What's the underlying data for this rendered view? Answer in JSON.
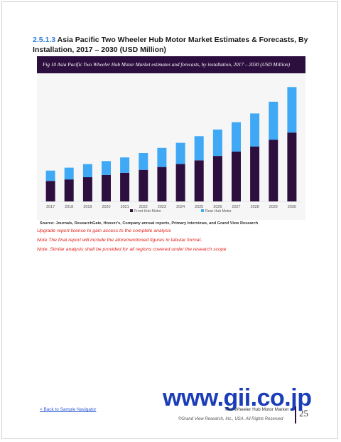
{
  "heading": {
    "number": "2.5.1.3",
    "text": "Asia Pacific Two Wheeler Hub Motor Market Estimates & Forecasts, By Installation, 2017 – 2030 (USD Million)"
  },
  "figure_caption": "Fig 10  Asia Pacific Two Wheeler Hub Motor Market estimates and forecasts, by installation, 2017 – 2030 (USD Million)",
  "source": "Source: Journals, ResearchGate, Hoover's, Company annual reports, Primary Interviews, and Grand View Research",
  "notes": [
    "Upgrade report license to gain access to the complete analysis",
    "Note The final report will include the aforementioned figures in tabular format.",
    "Note: Similar analysis shall be provided for all regions covered under the research scope"
  ],
  "watermark": "www.gii.co.jp",
  "footer": {
    "back_link": "< Back to Sample Navigator",
    "report_title": "Two Wheeler Hub Motor Market",
    "copyright": "©Grand View Research, Inc., USA. All Rights Reserved",
    "page_number": "25"
  },
  "colors": {
    "front": "#2d0f3f",
    "rear": "#3fa9f5",
    "header_bg": "#2d0f3f"
  },
  "chart_data": {
    "type": "bar",
    "stacked": true,
    "categories": [
      "2017",
      "2018",
      "2019",
      "2020",
      "2021",
      "2022",
      "2023",
      "2024",
      "2025",
      "2026",
      "2027",
      "2028",
      "2029",
      "2030"
    ],
    "series": [
      {
        "name": "Front Hub Motor",
        "values": [
          28,
          30,
          33,
          36,
          39,
          43,
          47,
          51,
          56,
          62,
          68,
          75,
          84,
          94
        ]
      },
      {
        "name": "Rear Hub Motor",
        "values": [
          14,
          16,
          18,
          19,
          21,
          23,
          26,
          29,
          33,
          36,
          40,
          45,
          52,
          62
        ]
      }
    ],
    "ylim": [
      0,
      165
    ],
    "grid": false,
    "legend": "bottom"
  }
}
